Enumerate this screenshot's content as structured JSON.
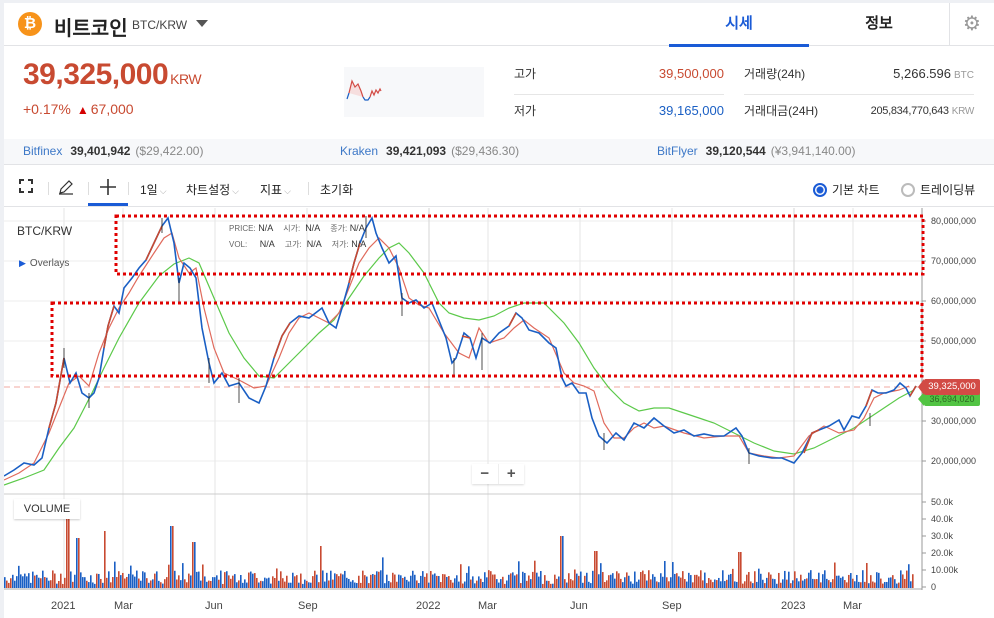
{
  "header": {
    "coin_name": "비트코인",
    "pair": "BTC/KRW",
    "logo_glyph": "₿",
    "tabs": [
      {
        "label": "시세",
        "active": true
      },
      {
        "label": "정보",
        "active": false
      }
    ],
    "settings_icon": "⚙"
  },
  "summary": {
    "price": "39,325,000",
    "price_unit": "KRW",
    "change_pct": "+0.17%",
    "change_arrow": "▲",
    "change_abs": "67,000",
    "high_label": "고가",
    "high_value": "39,500,000",
    "low_label": "저가",
    "low_value": "39,165,000",
    "volume_label": "거래량(24h)",
    "volume_value": "5,266.596",
    "volume_unit": "BTC",
    "amount_label": "거래대금(24H)",
    "amount_value": "205,834,770,643",
    "amount_unit": "KRW"
  },
  "exchanges": [
    {
      "name": "Bitfinex",
      "price": "39,401,942",
      "foreign": "($29,422.00)"
    },
    {
      "name": "Kraken",
      "price": "39,421,093",
      "foreign": "($29,436.30)"
    },
    {
      "name": "BitFlyer",
      "price": "39,120,544",
      "foreign": "(¥3,941,140.00)"
    }
  ],
  "toolbar": {
    "fullscreen_icon": "⛶",
    "draw_icon": "✎",
    "crosshair_icon": "+",
    "interval": "1일",
    "chart_settings": "차트설정",
    "indicators": "지표",
    "reset": "초기화",
    "chevron": "⌵",
    "radio_basic": "기본 차트",
    "radio_tradingview": "트레이딩뷰"
  },
  "chart": {
    "symbol": "BTC/KRW",
    "overlays": "Overlays",
    "overlays_arrow": "▶",
    "legend": {
      "price_k": "PRICE:",
      "price_v": "N/A",
      "open_k": "시가:",
      "open_v": "N/A",
      "close_k": "종가:",
      "close_v": "N/A",
      "vol_k": "VOL:",
      "vol_v": "N/A",
      "high_k": "고가:",
      "high_v": "N/A",
      "low_k": "저가:",
      "low_v": "N/A"
    },
    "zoom_out": "−",
    "zoom_in": "+",
    "last_price_tag": "39,325,000",
    "ma_tag": "36,694,020",
    "volume_label": "VOLUME",
    "colors": {
      "up": "#c84a31",
      "down": "#1a5fc4",
      "ma_short": "#e06a5c",
      "ma_long": "#5cc94a",
      "highlight_box": "#e00000"
    }
  },
  "chart_data": {
    "type": "line",
    "title": "BTC/KRW",
    "xlabel": "",
    "ylabel": "KRW",
    "x_ticks": [
      "2021",
      "Mar",
      "Jun",
      "Sep",
      "2022",
      "Mar",
      "Jun",
      "Sep",
      "2023",
      "Mar"
    ],
    "y_ticks": [
      "20,000,000",
      "30,000,000",
      "40,000,000",
      "50,000,000",
      "60,000,000",
      "70,000,000",
      "80,000,000"
    ],
    "ylim": [
      15000000,
      82000000
    ],
    "volume_ticks": [
      "0",
      "10.00k",
      "20.0k",
      "30.0k",
      "40.0k",
      "50.0k"
    ],
    "grid": true,
    "series": [
      {
        "name": "BTC/KRW close (approx.)",
        "x": [
          "2020-11",
          "2020-12",
          "2021-01",
          "2021-02",
          "2021-03",
          "2021-04",
          "2021-05",
          "2021-06",
          "2021-07",
          "2021-08",
          "2021-09",
          "2021-10",
          "2021-11",
          "2021-12",
          "2022-01",
          "2022-02",
          "2022-03",
          "2022-04",
          "2022-05",
          "2022-06",
          "2022-07",
          "2022-08",
          "2022-09",
          "2022-10",
          "2022-11",
          "2022-12",
          "2023-01",
          "2023-02",
          "2023-03",
          "2023-04"
        ],
        "values": [
          17500000,
          21000000,
          38000000,
          52000000,
          66000000,
          79000000,
          48000000,
          40000000,
          37000000,
          55000000,
          52000000,
          70000000,
          76000000,
          58000000,
          48000000,
          50000000,
          55000000,
          48000000,
          39000000,
          26000000,
          28000000,
          32000000,
          28000000,
          28000000,
          23000000,
          21000000,
          28000000,
          30000000,
          35000000,
          39325000
        ]
      },
      {
        "name": "MA short (red)",
        "values": [
          17000000,
          20000000,
          34000000,
          48000000,
          62000000,
          74000000,
          55000000,
          42000000,
          38000000,
          50000000,
          53000000,
          66000000,
          73000000,
          62000000,
          50000000,
          49000000,
          53000000,
          50000000,
          42000000,
          30000000,
          28000000,
          31000000,
          29000000,
          28000000,
          24000000,
          22000000,
          26000000,
          29000000,
          33000000,
          38500000
        ]
      },
      {
        "name": "MA long (green)",
        "values": [
          15500000,
          18000000,
          26000000,
          38000000,
          52000000,
          66000000,
          65000000,
          50000000,
          41000000,
          43000000,
          50000000,
          58000000,
          70000000,
          64000000,
          54000000,
          50000000,
          51000000,
          50000000,
          45000000,
          35000000,
          30000000,
          30000000,
          29000000,
          28000000,
          25000000,
          22000000,
          24000000,
          28000000,
          32000000,
          36694020
        ]
      }
    ],
    "annotations": [
      "Last price 39,325,000",
      "MA 36,694,020",
      "Two dotted red highlight boxes: 70–80M range and 40–60M range"
    ],
    "volume": {
      "max_approx": 50000,
      "typical": 8000,
      "spikes": [
        "Jan 2021 ~48k",
        "May 2021 ~37k",
        "Jan 2022 ~28k",
        "May 2022 ~32k",
        "Nov 2022 ~23k"
      ]
    }
  }
}
